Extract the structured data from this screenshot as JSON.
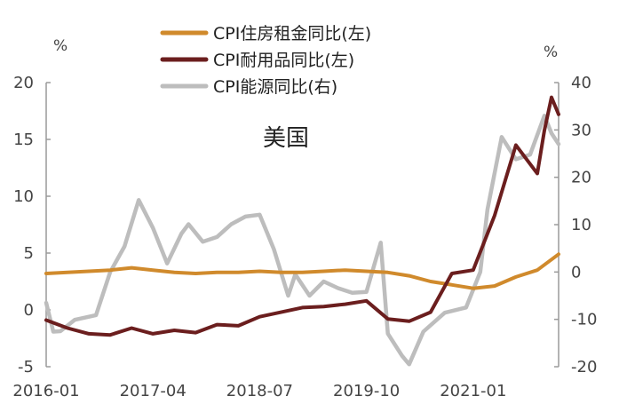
{
  "chart_data": {
    "type": "line",
    "annotation": "美国",
    "left_unit": "%",
    "right_unit": "%",
    "legend_placement": "top-center",
    "grid": false,
    "x_tick_labels": [
      "2016-01",
      "2017-04",
      "2018-07",
      "2019-10",
      "2021-01"
    ],
    "x_range": [
      "2016-01",
      "2022-01"
    ],
    "y_left": {
      "ticks": [
        "-5",
        "0",
        "5",
        "10",
        "15",
        "20"
      ],
      "range": [
        -5,
        20
      ]
    },
    "y_right": {
      "ticks": [
        "-20",
        "-10",
        "0",
        "10",
        "20",
        "30",
        "40"
      ],
      "range": [
        -20,
        40
      ]
    },
    "series": [
      {
        "name": "CPI住房租金同比(左)",
        "axis": "left",
        "color": "#d08a2c",
        "x": [
          "2016-01",
          "2016-04",
          "2016-07",
          "2016-10",
          "2017-01",
          "2017-04",
          "2017-07",
          "2017-10",
          "2018-01",
          "2018-04",
          "2018-07",
          "2018-10",
          "2019-01",
          "2019-04",
          "2019-07",
          "2019-10",
          "2020-01",
          "2020-04",
          "2020-07",
          "2020-10",
          "2021-01",
          "2021-04",
          "2021-07",
          "2021-10",
          "2022-01"
        ],
        "values": [
          3.2,
          3.3,
          3.4,
          3.5,
          3.7,
          3.5,
          3.3,
          3.2,
          3.3,
          3.3,
          3.4,
          3.3,
          3.3,
          3.4,
          3.5,
          3.4,
          3.3,
          3.0,
          2.5,
          2.2,
          1.9,
          2.1,
          2.9,
          3.5,
          4.9
        ]
      },
      {
        "name": "CPI耐用品同比(左)",
        "axis": "left",
        "color": "#6b1e1e",
        "x": [
          "2016-01",
          "2016-04",
          "2016-07",
          "2016-10",
          "2017-01",
          "2017-04",
          "2017-07",
          "2017-10",
          "2018-01",
          "2018-04",
          "2018-07",
          "2018-10",
          "2019-01",
          "2019-04",
          "2019-07",
          "2019-10",
          "2020-01",
          "2020-04",
          "2020-07",
          "2020-10",
          "2021-01",
          "2021-04",
          "2021-07",
          "2021-10",
          "2021-11",
          "2021-12",
          "2022-01"
        ],
        "values": [
          -0.9,
          -1.6,
          -2.1,
          -2.2,
          -1.6,
          -2.1,
          -1.8,
          -2.0,
          -1.3,
          -1.4,
          -0.6,
          -0.2,
          0.2,
          0.3,
          0.5,
          0.8,
          -0.8,
          -1.0,
          -0.2,
          3.2,
          3.5,
          8.3,
          14.5,
          12.0,
          15.8,
          18.7,
          17.2
        ]
      },
      {
        "name": "CPI能源同比(右)",
        "axis": "right",
        "color": "#bdbdbd",
        "x": [
          "2016-01",
          "2016-02",
          "2016-03",
          "2016-05",
          "2016-08",
          "2016-10",
          "2016-12",
          "2017-02",
          "2017-04",
          "2017-06",
          "2017-08",
          "2017-09",
          "2017-11",
          "2018-01",
          "2018-03",
          "2018-05",
          "2018-07",
          "2018-09",
          "2018-11",
          "2018-12",
          "2019-02",
          "2019-04",
          "2019-06",
          "2019-08",
          "2019-10",
          "2019-12",
          "2020-01",
          "2020-03",
          "2020-04",
          "2020-06",
          "2020-09",
          "2020-12",
          "2021-02",
          "2021-03",
          "2021-05",
          "2021-07",
          "2021-09",
          "2021-11",
          "2021-12",
          "2022-01"
        ],
        "values": [
          -6.5,
          -12.6,
          -12.5,
          -10.1,
          -9.1,
          0.0,
          5.4,
          15.2,
          9.3,
          1.8,
          8.1,
          10.1,
          6.4,
          7.4,
          10.1,
          11.7,
          12.1,
          4.8,
          -5.0,
          -0.5,
          -5.0,
          -2.0,
          -3.4,
          -4.4,
          -4.2,
          6.2,
          -13.0,
          -17.7,
          -19.5,
          -12.6,
          -8.6,
          -7.5,
          0.0,
          13.2,
          28.5,
          23.8,
          24.8,
          33.0,
          29.3,
          27.0
        ]
      }
    ]
  }
}
